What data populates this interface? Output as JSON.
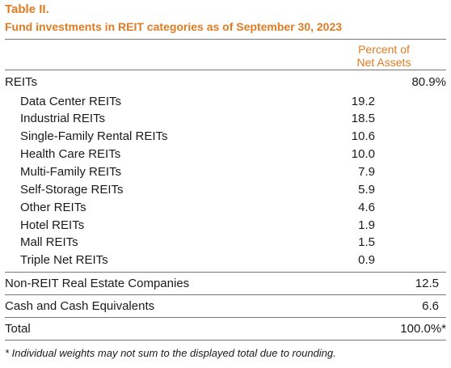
{
  "table": {
    "title": "Table II.",
    "subtitle": "Fund investments in REIT categories as of September 30, 2023",
    "column_header_line1": "Percent of",
    "column_header_line2": "Net Assets",
    "reits": {
      "label": "REITs",
      "value": "80.9%"
    },
    "categories": [
      {
        "label": "Data Center REITs",
        "value": "19.2"
      },
      {
        "label": "Industrial REITs",
        "value": "18.5"
      },
      {
        "label": "Single-Family Rental REITs",
        "value": "10.6"
      },
      {
        "label": "Health Care REITs",
        "value": "10.0"
      },
      {
        "label": "Multi-Family REITs",
        "value": "7.9"
      },
      {
        "label": "Self-Storage REITs",
        "value": "5.9"
      },
      {
        "label": "Other REITs",
        "value": "4.6"
      },
      {
        "label": "Hotel REITs",
        "value": "1.9"
      },
      {
        "label": "Mall REITs",
        "value": "1.5"
      },
      {
        "label": "Triple Net REITs",
        "value": "0.9"
      }
    ],
    "non_reit": {
      "label": "Non-REIT Real Estate Companies",
      "value": "12.5"
    },
    "cash": {
      "label": "Cash and Cash Equivalents",
      "value": "6.6"
    },
    "total": {
      "label": "Total",
      "value": "100.0%*"
    },
    "footnote": "* Individual weights may not sum to the displayed total due to rounding."
  },
  "colors": {
    "accent": "#e07b22",
    "text": "#1a1a1a",
    "rule": "#777777"
  }
}
